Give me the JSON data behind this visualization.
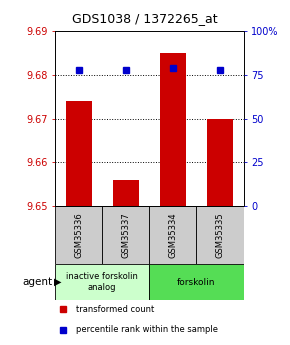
{
  "title": "GDS1038 / 1372265_at",
  "samples": [
    "GSM35336",
    "GSM35337",
    "GSM35334",
    "GSM35335"
  ],
  "bar_values": [
    9.674,
    9.656,
    9.685,
    9.67
  ],
  "percentile_values": [
    78,
    78,
    79,
    78
  ],
  "ylim_left": [
    9.65,
    9.69
  ],
  "ylim_right": [
    0,
    100
  ],
  "yticks_left": [
    9.65,
    9.66,
    9.67,
    9.68,
    9.69
  ],
  "yticks_right": [
    0,
    25,
    50,
    75,
    100
  ],
  "ytick_labels_right": [
    "0",
    "25",
    "50",
    "75",
    "100%"
  ],
  "bar_color": "#cc0000",
  "dot_color": "#0000cc",
  "groups": [
    {
      "label": "inactive forskolin\nanalog",
      "color": "#ccffcc"
    },
    {
      "label": "forskolin",
      "color": "#55dd55"
    }
  ],
  "agent_label": "agent",
  "legend_items": [
    {
      "label": "transformed count",
      "color": "#cc0000"
    },
    {
      "label": "percentile rank within the sample",
      "color": "#0000cc"
    }
  ],
  "background_color": "#ffffff",
  "box_color": "#cccccc",
  "title_fontsize": 9,
  "tick_fontsize": 7,
  "label_fontsize": 7
}
